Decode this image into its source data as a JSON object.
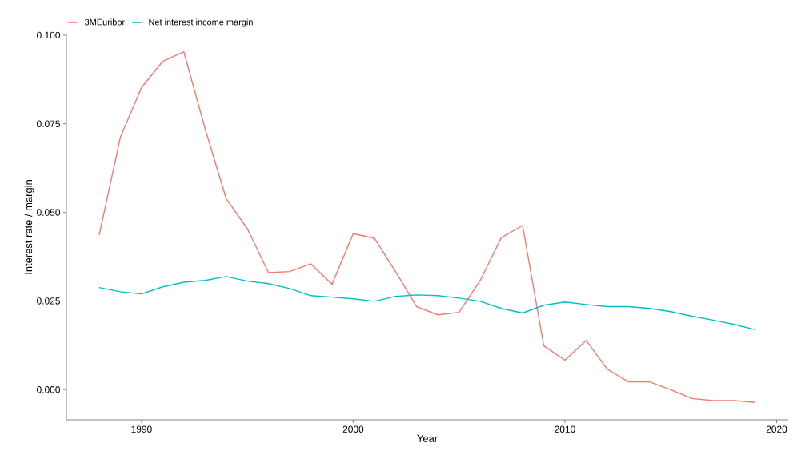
{
  "chart_data": {
    "type": "line",
    "xlabel": "Year",
    "ylabel": "Interest rate / margin",
    "x": [
      1988,
      1989,
      1990,
      1991,
      1992,
      1993,
      1994,
      1995,
      1996,
      1997,
      1998,
      1999,
      2000,
      2001,
      2002,
      2003,
      2004,
      2005,
      2006,
      2007,
      2008,
      2009,
      2010,
      2011,
      2012,
      2013,
      2014,
      2015,
      2016,
      2017,
      2018,
      2019
    ],
    "series": [
      {
        "name": "3MEuribor",
        "color": "#f8766d",
        "values": [
          0.0436,
          0.0712,
          0.0852,
          0.0926,
          0.0953,
          0.0737,
          0.0539,
          0.0454,
          0.033,
          0.0333,
          0.0355,
          0.0297,
          0.044,
          0.0427,
          0.0333,
          0.0234,
          0.0211,
          0.0218,
          0.0308,
          0.0429,
          0.0463,
          0.0124,
          0.0083,
          0.0139,
          0.0058,
          0.0022,
          0.0022,
          0.0,
          -0.0025,
          -0.0031,
          -0.0031,
          -0.0036
        ]
      },
      {
        "name": "Net interest income margin",
        "color": "#00bfc4",
        "values": [
          0.0288,
          0.0276,
          0.027,
          0.029,
          0.0303,
          0.0308,
          0.0319,
          0.0306,
          0.0299,
          0.0285,
          0.0265,
          0.0261,
          0.0256,
          0.0249,
          0.0263,
          0.0267,
          0.0265,
          0.0258,
          0.0249,
          0.0229,
          0.0216,
          0.0238,
          0.0247,
          0.024,
          0.0234,
          0.0234,
          0.0229,
          0.022,
          0.0207,
          0.0196,
          0.0184,
          0.0169
        ]
      }
    ],
    "xlim": [
      1986.45,
      2020.55
    ],
    "ylim": [
      -0.0085,
      0.1002
    ],
    "xticks": [
      1990,
      2000,
      2010,
      2020
    ],
    "yticks": [
      {
        "value": 0,
        "label": "0.000"
      },
      {
        "value": 0.025,
        "label": "0.025"
      },
      {
        "value": 0.05,
        "label": "0.050"
      },
      {
        "value": 0.075,
        "label": "0.075"
      },
      {
        "value": 0.1,
        "label": "0.100"
      }
    ],
    "grid": false,
    "legend": "top left",
    "line_style": "solid",
    "marker": "none"
  }
}
